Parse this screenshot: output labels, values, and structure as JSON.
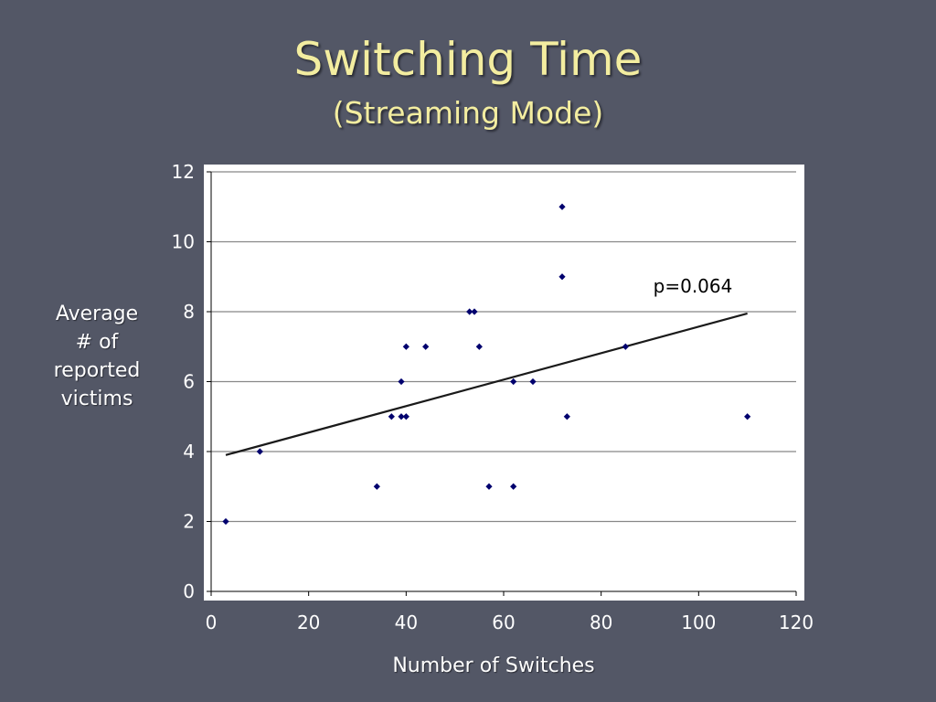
{
  "slide": {
    "title": "Switching Time",
    "subtitle": "(Streaming Mode)"
  },
  "chart_data": {
    "type": "scatter",
    "title": "",
    "xlabel": "Number of Switches",
    "ylabel_lines": [
      "Average",
      "# of",
      "reported",
      "victims"
    ],
    "xlim": [
      0,
      120
    ],
    "ylim": [
      0,
      12
    ],
    "x_ticks": [
      0,
      20,
      40,
      60,
      80,
      100,
      120
    ],
    "y_ticks": [
      0,
      2,
      4,
      6,
      8,
      10,
      12
    ],
    "grid": "horizontal",
    "legend": "none",
    "annotation": "p=0.064",
    "points": [
      {
        "x": 3,
        "y": 2
      },
      {
        "x": 10,
        "y": 4
      },
      {
        "x": 34,
        "y": 3
      },
      {
        "x": 37,
        "y": 5
      },
      {
        "x": 39,
        "y": 5
      },
      {
        "x": 39,
        "y": 6
      },
      {
        "x": 40,
        "y": 5
      },
      {
        "x": 40,
        "y": 7
      },
      {
        "x": 44,
        "y": 7
      },
      {
        "x": 53,
        "y": 8
      },
      {
        "x": 54,
        "y": 8
      },
      {
        "x": 55,
        "y": 7
      },
      {
        "x": 57,
        "y": 3
      },
      {
        "x": 62,
        "y": 3
      },
      {
        "x": 62,
        "y": 6
      },
      {
        "x": 66,
        "y": 6
      },
      {
        "x": 72,
        "y": 11
      },
      {
        "x": 72,
        "y": 9
      },
      {
        "x": 73,
        "y": 5
      },
      {
        "x": 85,
        "y": 7
      },
      {
        "x": 110,
        "y": 5
      }
    ],
    "trendline": {
      "x": [
        3,
        110
      ],
      "y": [
        3.9,
        7.95
      ]
    },
    "colors": {
      "point": "#00006e",
      "trendline": "#1a1a1a",
      "plot_bg": "#ffffff",
      "gridline": "#888888",
      "title": "#f3eda0"
    }
  }
}
